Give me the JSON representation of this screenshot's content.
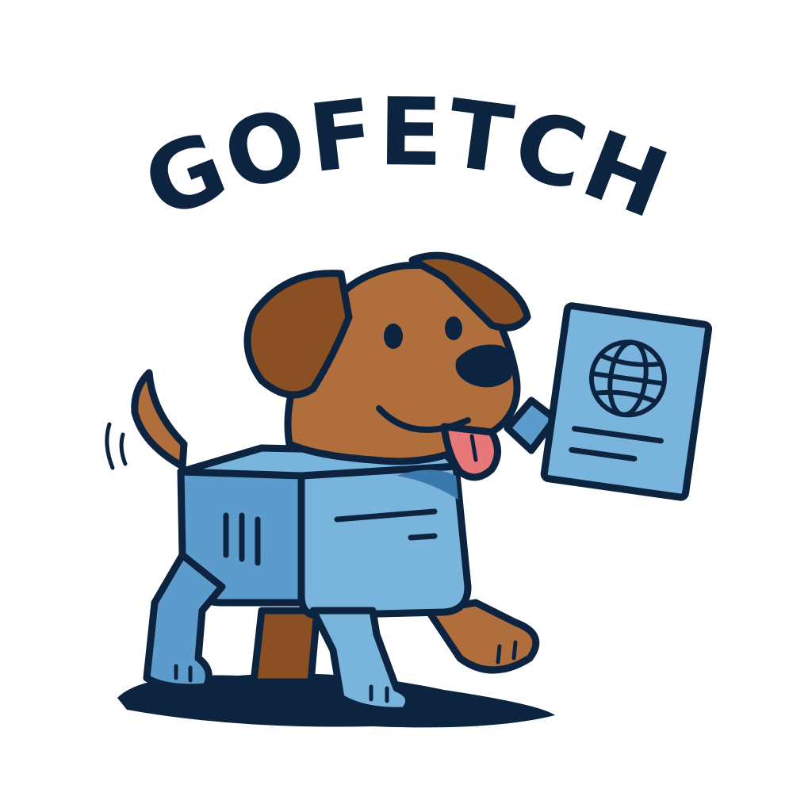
{
  "logo": {
    "wordmark": "GOFETCH",
    "mascot_icon": "dog-carrying-passport-icon",
    "colors": {
      "outline": "#0d2440",
      "fur": "#b06e3c",
      "fur_dark": "#8a5024",
      "box_light": "#78b4dc",
      "box_mid": "#5c9ccd",
      "box_dark": "#3a79ad",
      "tongue": "#e7787a",
      "background": "#ffffff"
    }
  }
}
